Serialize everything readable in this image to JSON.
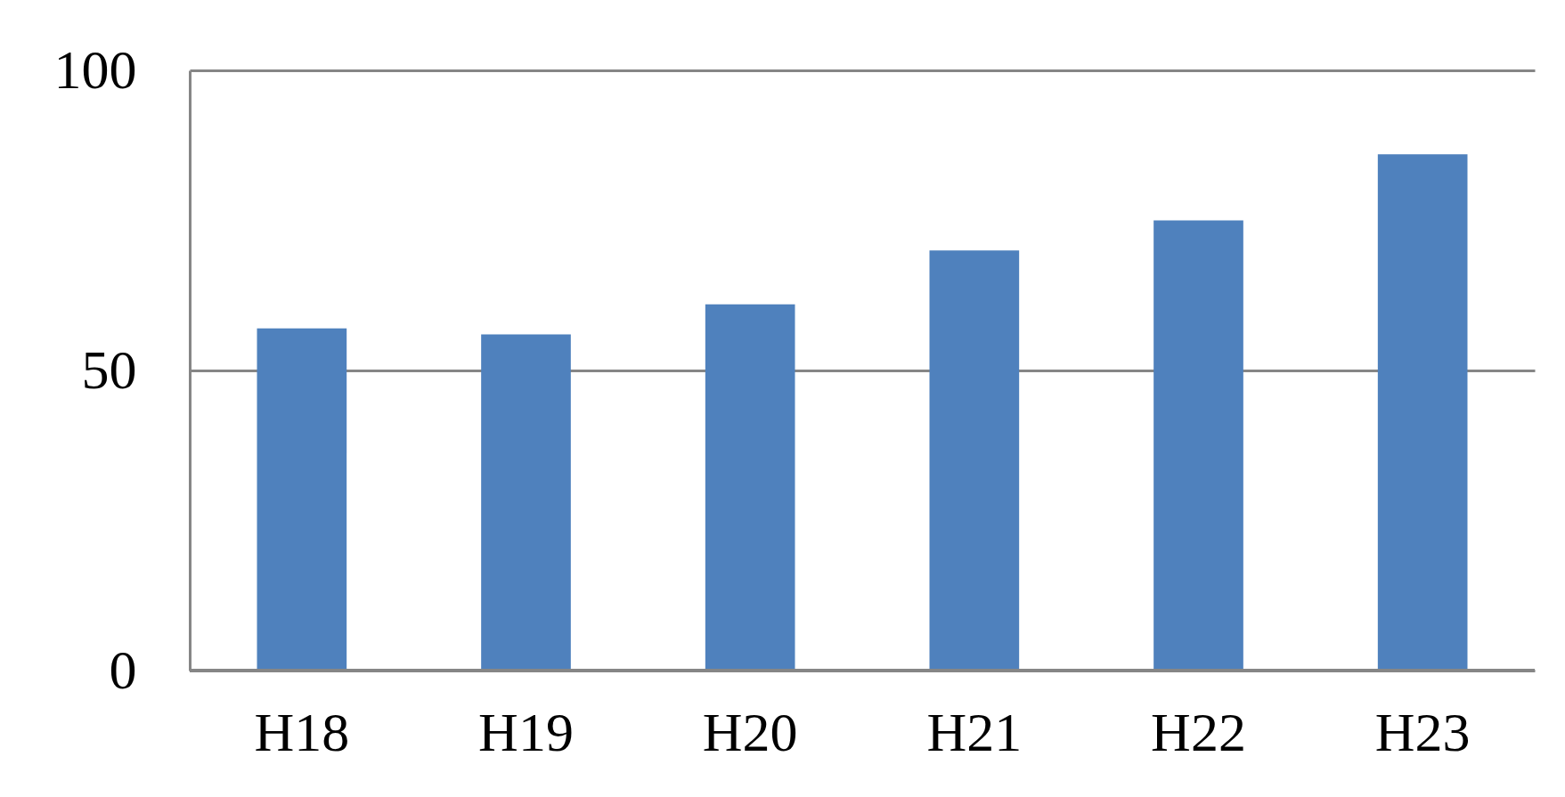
{
  "chart_data": {
    "type": "bar",
    "categories": [
      "H18",
      "H19",
      "H20",
      "H21",
      "H22",
      "H23"
    ],
    "values": [
      57,
      56,
      61,
      70,
      75,
      86
    ],
    "color": "#4f81bd",
    "ylim": [
      0,
      100
    ],
    "yticks": [
      0,
      50,
      100
    ],
    "grid": "y"
  }
}
